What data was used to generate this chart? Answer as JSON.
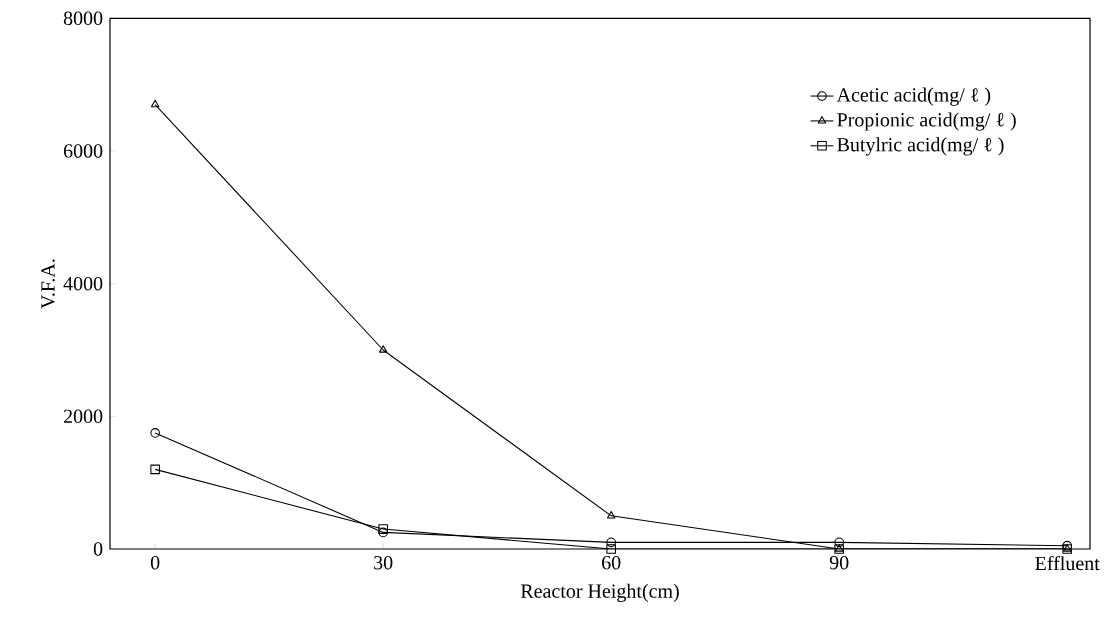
{
  "chart_data": {
    "type": "line",
    "xlabel": "Reactor Height(cm)",
    "ylabel": "V.F.A.",
    "categories": [
      "0",
      "30",
      "60",
      "90",
      "Effluent"
    ],
    "series": [
      {
        "name": "Acetic acid(mg/ ℓ )",
        "color": "#000000",
        "marker": "circle",
        "values": [
          1750,
          250,
          100,
          100,
          50
        ]
      },
      {
        "name": "Propionic acid(mg/ ℓ )",
        "color": "#000000",
        "marker": "triangle",
        "values": [
          6700,
          3000,
          500,
          0,
          0
        ]
      },
      {
        "name": "Butylric acid(mg/ ℓ )",
        "color": "#000000",
        "marker": "square",
        "values": [
          1200,
          300,
          0,
          0,
          0
        ]
      }
    ],
    "ylim": [
      0,
      8000
    ],
    "yticks": [
      0,
      2000,
      4000,
      6000,
      8000
    ],
    "grid": false,
    "legend": "top right"
  }
}
